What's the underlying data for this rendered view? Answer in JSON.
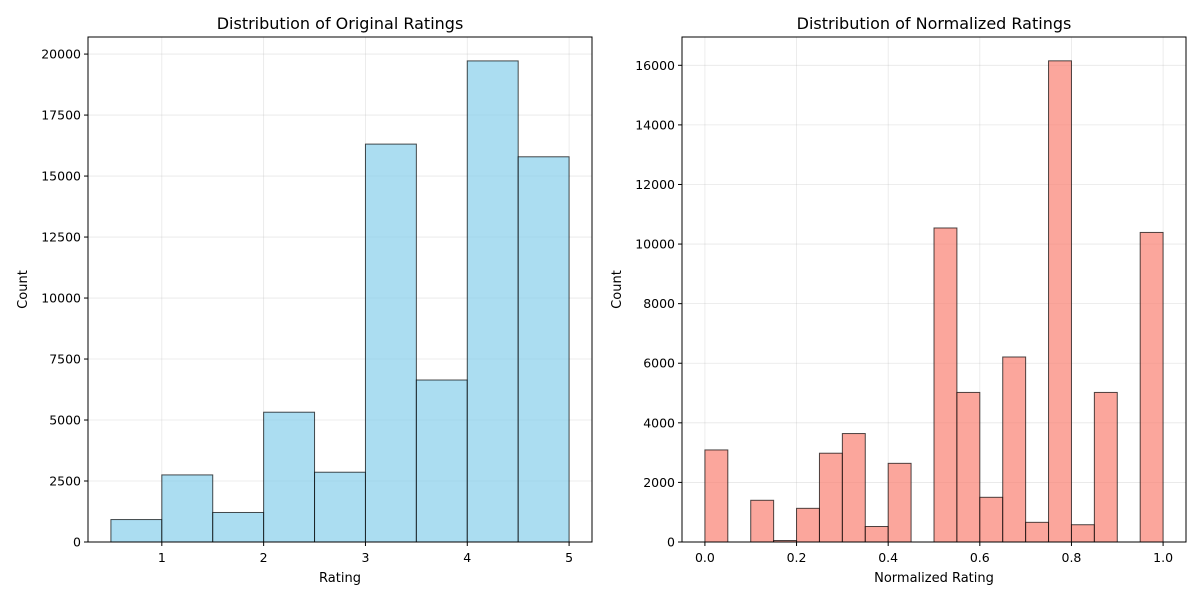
{
  "chart_data": [
    {
      "type": "bar",
      "histogram": true,
      "title": "Distribution of Original Ratings",
      "xlabel": "Rating",
      "ylabel": "Count",
      "color": "#87CEEB",
      "edge_color": "#000000",
      "xlim": [
        0.275,
        5.225
      ],
      "ylim": [
        0,
        20700
      ],
      "xticks": [
        1,
        2,
        3,
        4,
        5
      ],
      "xtick_labels": [
        "1",
        "2",
        "3",
        "4",
        "5"
      ],
      "yticks": [
        0,
        2500,
        5000,
        7500,
        10000,
        12500,
        15000,
        17500,
        20000
      ],
      "ytick_labels": [
        "0",
        "2500",
        "5000",
        "7500",
        "10000",
        "12500",
        "15000",
        "17500",
        "20000"
      ],
      "grid": true,
      "bins": [
        {
          "x0": 0.5,
          "x1": 1.0,
          "value": 920
        },
        {
          "x0": 1.0,
          "x1": 1.5,
          "value": 2750
        },
        {
          "x0": 1.5,
          "x1": 2.0,
          "value": 1210
        },
        {
          "x0": 2.0,
          "x1": 2.5,
          "value": 5320
        },
        {
          "x0": 2.5,
          "x1": 3.0,
          "value": 2860
        },
        {
          "x0": 3.0,
          "x1": 3.5,
          "value": 16310
        },
        {
          "x0": 3.5,
          "x1": 4.0,
          "value": 6640
        },
        {
          "x0": 4.0,
          "x1": 4.5,
          "value": 19720
        },
        {
          "x0": 4.5,
          "x1": 5.0,
          "value": 15790
        }
      ]
    },
    {
      "type": "bar",
      "histogram": true,
      "title": "Distribution of Normalized Ratings",
      "xlabel": "Normalized Rating",
      "ylabel": "Count",
      "color": "#FA8072",
      "edge_color": "#000000",
      "xlim": [
        -0.05,
        1.05
      ],
      "ylim": [
        0,
        16950
      ],
      "xticks": [
        0.0,
        0.2,
        0.4,
        0.6,
        0.8,
        1.0
      ],
      "xtick_labels": [
        "0.0",
        "0.2",
        "0.4",
        "0.6",
        "0.8",
        "1.0"
      ],
      "yticks": [
        0,
        2000,
        4000,
        6000,
        8000,
        10000,
        12000,
        14000,
        16000
      ],
      "ytick_labels": [
        "0",
        "2000",
        "4000",
        "6000",
        "8000",
        "10000",
        "12000",
        "14000",
        "16000"
      ],
      "grid": true,
      "bins": [
        {
          "x0": 0.0,
          "x1": 0.05,
          "value": 3090
        },
        {
          "x0": 0.05,
          "x1": 0.1,
          "value": 0
        },
        {
          "x0": 0.1,
          "x1": 0.15,
          "value": 1400
        },
        {
          "x0": 0.15,
          "x1": 0.2,
          "value": 50
        },
        {
          "x0": 0.2,
          "x1": 0.25,
          "value": 1130
        },
        {
          "x0": 0.25,
          "x1": 0.3,
          "value": 2980
        },
        {
          "x0": 0.3,
          "x1": 0.35,
          "value": 3640
        },
        {
          "x0": 0.35,
          "x1": 0.4,
          "value": 520
        },
        {
          "x0": 0.4,
          "x1": 0.45,
          "value": 2640
        },
        {
          "x0": 0.45,
          "x1": 0.5,
          "value": 0
        },
        {
          "x0": 0.5,
          "x1": 0.55,
          "value": 10540
        },
        {
          "x0": 0.55,
          "x1": 0.6,
          "value": 5020
        },
        {
          "x0": 0.6,
          "x1": 0.65,
          "value": 1500
        },
        {
          "x0": 0.65,
          "x1": 0.7,
          "value": 6210
        },
        {
          "x0": 0.7,
          "x1": 0.75,
          "value": 660
        },
        {
          "x0": 0.75,
          "x1": 0.8,
          "value": 16150
        },
        {
          "x0": 0.8,
          "x1": 0.85,
          "value": 580
        },
        {
          "x0": 0.85,
          "x1": 0.9,
          "value": 5020
        },
        {
          "x0": 0.9,
          "x1": 0.95,
          "value": 0
        },
        {
          "x0": 0.95,
          "x1": 1.0,
          "value": 10390
        }
      ]
    }
  ]
}
